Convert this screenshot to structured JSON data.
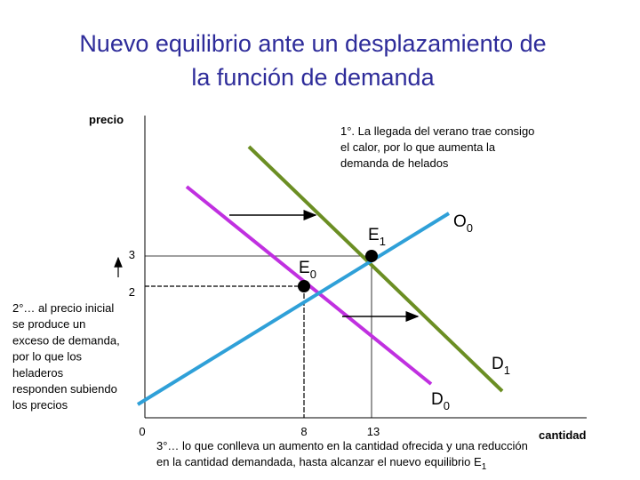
{
  "title": [
    "Nuevo equilibrio ante un desplazamiento de",
    "la función de demanda"
  ],
  "axes": {
    "y_label": "precio",
    "x_label": "cantidad",
    "y_ticks": [
      "3",
      "2"
    ],
    "x_ticks": [
      "0",
      "8",
      "13"
    ]
  },
  "curves": {
    "supply": {
      "text": "O",
      "sub": "0"
    },
    "new_demand": {
      "text": "D",
      "sub": "1"
    },
    "old_demand": {
      "text": "D",
      "sub": "0"
    }
  },
  "points": {
    "e0": {
      "text": "E",
      "sub": "0"
    },
    "e1": {
      "text": "E",
      "sub": "1"
    }
  },
  "notes": {
    "step1": [
      "1°. La llegada del verano trae consigo",
      "el calor, por lo que aumenta la",
      "demanda de helados"
    ],
    "step2": [
      "2°… al precio inicial",
      "se produce un",
      "exceso de demanda,",
      "por lo que los",
      "heladeros",
      "responden subiendo",
      "los precios"
    ],
    "step3": {
      "line1": "3°… lo que conlleva un aumento en la cantidad ofrecida y una reducción",
      "line2": "en la cantidad demandada, hasta alcanzar el nuevo equilibrio E",
      "sub": "1"
    }
  }
}
